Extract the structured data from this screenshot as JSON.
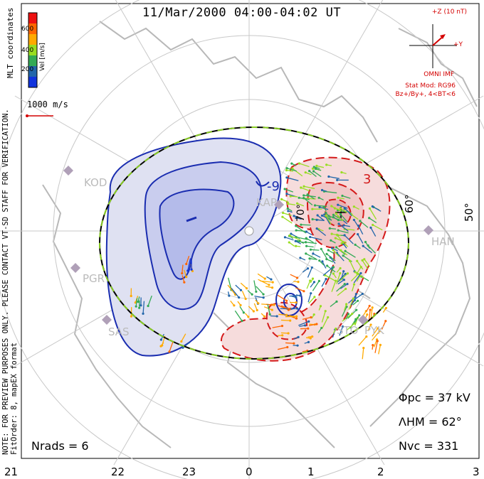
{
  "title": "11/Mar/2000 04:00-04:02 UT",
  "colorbar": {
    "label": "Vel [m/s]",
    "ticks": [
      "600",
      "400",
      "200"
    ],
    "colors": [
      "#ee1111",
      "#ff6600",
      "#ffaa00",
      "#99dd22",
      "#33aa55",
      "#2266aa",
      "#1133dd"
    ]
  },
  "coord_label": "MLT coordinates",
  "ref_vector_label": "1000 m/s",
  "notice": "NOTE: FOR PREVIEW PURPOSES ONLY. PLEASE CONTACT VT-SD STAFF FOR VERIFICATION.",
  "fit_order": "FitOrder: 8, mapEX format",
  "imf": {
    "scale": "+Z (10 nT)",
    "axis": "+Y",
    "source": "OMNI IMF",
    "stat_mod": "Stat Mod: RG96",
    "condition": "Bz+/By+, 4<BT<6"
  },
  "stats": {
    "phi_pc": "Φpc = 37 kV",
    "lambda_hm": "ΛHM = 62°",
    "n_vc": "Nvc = 331",
    "n_rads": "Nrads = 6"
  },
  "mlt_ticks": [
    "21",
    "22",
    "23",
    "0",
    "1",
    "2",
    "3"
  ],
  "lat_labels": [
    "60°",
    "50°",
    "70°"
  ],
  "contour_labels": [
    "-9",
    "3"
  ],
  "stations": [
    "KOD",
    "PGR",
    "SAS",
    "KAP",
    "STO",
    "PYK",
    "HAN"
  ],
  "colors": {
    "negative": "#1a2db0",
    "positive": "#d41a1a",
    "neg_fill": "#dfe1f2",
    "pos_fill": "#f6dcdc"
  }
}
